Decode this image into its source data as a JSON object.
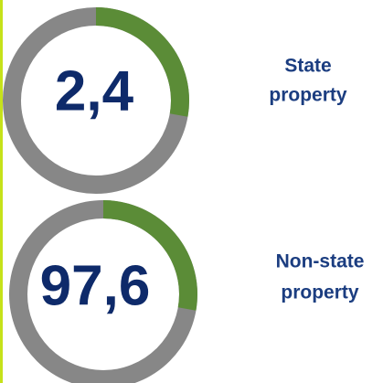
{
  "items": [
    {
      "value": "2,4",
      "label_lines": [
        "State",
        "property"
      ]
    },
    {
      "value": "97,6",
      "label_lines": [
        "Non-state",
        "property"
      ]
    }
  ]
}
